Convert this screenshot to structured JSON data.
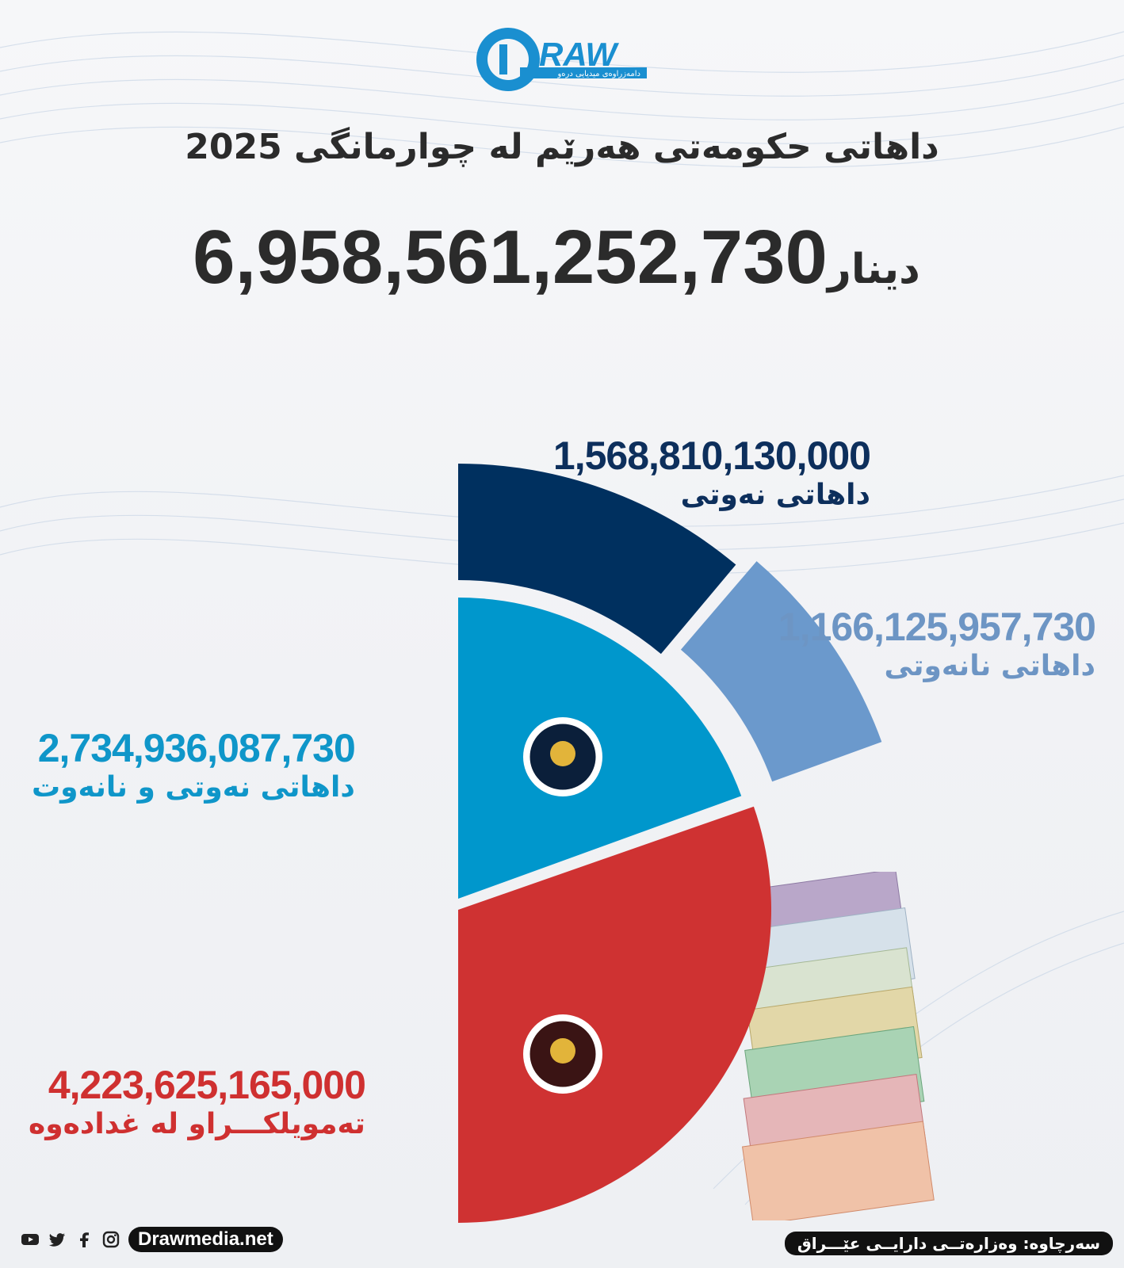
{
  "brand": {
    "logo_text": "RAW",
    "logo_subtitle": "دامەزراوەی میدیایی درەو",
    "website": "Drawmedia.net"
  },
  "header": {
    "title": "داهاتی حکومەتی هەرێم لە چوارمانگی 2025",
    "total_value": "6,958,561,252,730",
    "total_unit": "دینار"
  },
  "labels": {
    "oil": {
      "value": "1,568,810,130,000",
      "name": "داهاتی نەوتی"
    },
    "non_oil": {
      "value": "1,166,125,957,730",
      "name": "داهاتی نانەوتی"
    },
    "combined": {
      "value": "2,734,936,087,730",
      "name": "داهاتی نەوتی و نانەوت"
    },
    "baghdad": {
      "value": "4,223,625,165,000",
      "name": "تەمویلکـــراو لە غدادەوە"
    }
  },
  "footer": {
    "source": "سەرچاوە: وەزارەتــی دارایــی عێـــراق",
    "social_icons": [
      "youtube-icon",
      "twitter-icon",
      "facebook-icon",
      "instagram-icon"
    ]
  },
  "colors": {
    "oil": "#00305f",
    "non_oil": "#6b99cc",
    "combined": "#0097cc",
    "baghdad": "#cf3232"
  },
  "chart_data": {
    "type": "pie",
    "style": "half-pie (right half), nested",
    "total": 6958561252730,
    "series": [
      {
        "name": "تەمویلکـــراو لە غدادەوە",
        "value": 4223625165000,
        "color": "#cf3232"
      },
      {
        "name": "داهاتی نەوتی و نانەوت",
        "value": 2734936087730,
        "color": "#0097cc",
        "children": [
          {
            "name": "داهاتی نانەوتی",
            "value": 1166125957730,
            "color": "#6b99cc"
          },
          {
            "name": "داهاتی نەوتی",
            "value": 1568810130000,
            "color": "#00305f"
          }
        ]
      }
    ]
  }
}
